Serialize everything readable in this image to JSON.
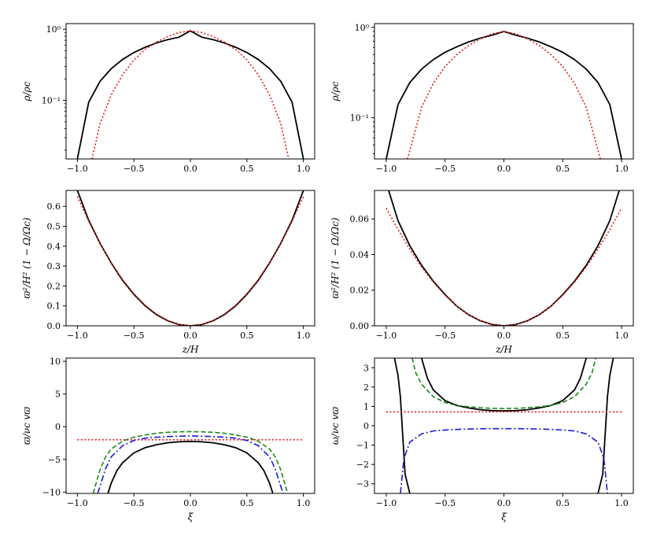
{
  "chart_data": [
    {
      "id": "p1",
      "type": "line",
      "yscale": "log",
      "xlim": [
        -1.1,
        1.1
      ],
      "ylim": [
        0.015,
        1.2
      ],
      "xticks": [
        -1.0,
        -0.5,
        0.0,
        0.5,
        1.0
      ],
      "xtick_labels": [
        "−1.0",
        "−0.5",
        "0.0",
        "0.5",
        "1.0"
      ],
      "yticks": [
        0.1,
        1.0
      ],
      "ytick_labels": [
        "10⁻¹",
        "10⁰"
      ],
      "xlabel": "",
      "ylabel": "ρ/ρc",
      "series": [
        {
          "style": "solid",
          "color": "#000000",
          "x": [
            -1.0,
            -0.9,
            -0.8,
            -0.7,
            -0.6,
            -0.5,
            -0.4,
            -0.3,
            -0.2,
            -0.1,
            0.0,
            0.1,
            0.2,
            0.3,
            0.4,
            0.5,
            0.6,
            0.7,
            0.8,
            0.9,
            1.0
          ],
          "y": [
            0.015,
            0.094,
            0.185,
            0.28,
            0.376,
            0.47,
            0.559,
            0.642,
            0.715,
            0.774,
            0.95,
            0.774,
            0.715,
            0.642,
            0.559,
            0.47,
            0.376,
            0.28,
            0.185,
            0.094,
            0.015
          ]
        },
        {
          "style": "dotted",
          "color": "#e31a1c",
          "x": [
            -0.87,
            -0.8,
            -0.7,
            -0.6,
            -0.5,
            -0.4,
            -0.3,
            -0.2,
            -0.1,
            0.0,
            0.1,
            0.2,
            0.3,
            0.4,
            0.5,
            0.6,
            0.7,
            0.8,
            0.87
          ],
          "y": [
            0.015,
            0.047,
            0.12,
            0.23,
            0.37,
            0.52,
            0.66,
            0.79,
            0.9,
            0.95,
            0.9,
            0.79,
            0.66,
            0.52,
            0.37,
            0.23,
            0.12,
            0.047,
            0.015
          ]
        }
      ]
    },
    {
      "id": "p2",
      "type": "line",
      "yscale": "log",
      "xlim": [
        -1.1,
        1.1
      ],
      "ylim": [
        0.035,
        1.1
      ],
      "xticks": [
        -1.0,
        -0.5,
        0.0,
        0.5,
        1.0
      ],
      "xtick_labels": [
        "−1.0",
        "−0.5",
        "0.0",
        "0.5",
        "1.0"
      ],
      "yticks": [
        0.1,
        1.0
      ],
      "ytick_labels": [
        "10⁻¹",
        "10⁰"
      ],
      "xlabel": "",
      "ylabel": "ρ/ρc",
      "series": [
        {
          "style": "solid",
          "color": "#000000",
          "x": [
            -1.0,
            -0.9,
            -0.8,
            -0.7,
            -0.6,
            -0.5,
            -0.4,
            -0.3,
            -0.2,
            -0.1,
            0.0,
            0.1,
            0.2,
            0.3,
            0.4,
            0.5,
            0.6,
            0.7,
            0.8,
            0.9,
            1.0
          ],
          "y": [
            0.035,
            0.14,
            0.245,
            0.345,
            0.44,
            0.53,
            0.61,
            0.69,
            0.76,
            0.82,
            0.9,
            0.82,
            0.76,
            0.69,
            0.61,
            0.53,
            0.44,
            0.345,
            0.245,
            0.14,
            0.035
          ]
        },
        {
          "style": "dotted",
          "color": "#e31a1c",
          "x": [
            -0.82,
            -0.7,
            -0.6,
            -0.5,
            -0.4,
            -0.3,
            -0.2,
            -0.1,
            0.0,
            0.1,
            0.2,
            0.3,
            0.4,
            0.5,
            0.6,
            0.7,
            0.82
          ],
          "y": [
            0.035,
            0.13,
            0.24,
            0.37,
            0.5,
            0.63,
            0.75,
            0.85,
            0.9,
            0.85,
            0.75,
            0.63,
            0.5,
            0.37,
            0.24,
            0.13,
            0.035
          ]
        }
      ]
    },
    {
      "id": "p3",
      "type": "line",
      "yscale": "linear",
      "xlim": [
        -1.1,
        1.1
      ],
      "ylim": [
        0.0,
        0.68
      ],
      "xticks": [
        -1.0,
        -0.5,
        0.0,
        0.5,
        1.0
      ],
      "xtick_labels": [
        "−1.0",
        "−0.5",
        "0.0",
        "0.5",
        "1.0"
      ],
      "yticks": [
        0.0,
        0.1,
        0.2,
        0.3,
        0.4,
        0.5,
        0.6
      ],
      "ytick_labels": [
        "0.0",
        "0.1",
        "0.2",
        "0.3",
        "0.4",
        "0.5",
        "0.6"
      ],
      "xlabel": "z/H",
      "ylabel": "ϖ²/H² (1 − Ω/Ωc)",
      "series": [
        {
          "style": "solid",
          "color": "#000000",
          "x": [
            -1.0,
            -0.9,
            -0.8,
            -0.7,
            -0.6,
            -0.5,
            -0.4,
            -0.3,
            -0.2,
            -0.1,
            0.0,
            0.1,
            0.2,
            0.3,
            0.4,
            0.5,
            0.6,
            0.7,
            0.8,
            0.9,
            1.0
          ],
          "y": [
            0.68,
            0.53,
            0.415,
            0.315,
            0.228,
            0.158,
            0.1,
            0.056,
            0.025,
            0.006,
            0.0,
            0.006,
            0.025,
            0.056,
            0.1,
            0.158,
            0.228,
            0.315,
            0.415,
            0.53,
            0.68
          ]
        },
        {
          "style": "dotted",
          "color": "#e31a1c",
          "x": [
            -1.0,
            -0.9,
            -0.8,
            -0.7,
            -0.6,
            -0.5,
            -0.4,
            -0.3,
            -0.2,
            -0.1,
            0.0,
            0.1,
            0.2,
            0.3,
            0.4,
            0.5,
            0.6,
            0.7,
            0.8,
            0.9,
            1.0
          ],
          "y": [
            0.65,
            0.525,
            0.415,
            0.317,
            0.232,
            0.161,
            0.103,
            0.058,
            0.026,
            0.0065,
            0.0,
            0.0065,
            0.026,
            0.058,
            0.103,
            0.161,
            0.232,
            0.317,
            0.415,
            0.525,
            0.65
          ]
        }
      ]
    },
    {
      "id": "p4",
      "type": "line",
      "yscale": "linear",
      "xlim": [
        -1.1,
        1.1
      ],
      "ylim": [
        0.0,
        0.076
      ],
      "xticks": [
        -1.0,
        -0.5,
        0.0,
        0.5,
        1.0
      ],
      "xtick_labels": [
        "−1.0",
        "−0.5",
        "0.0",
        "0.5",
        "1.0"
      ],
      "yticks": [
        0.0,
        0.02,
        0.04,
        0.06
      ],
      "ytick_labels": [
        "0.00",
        "0.02",
        "0.04",
        "0.06"
      ],
      "xlabel": "z/H",
      "ylabel": "ϖ²/H² (1 − Ω/Ωc)",
      "series": [
        {
          "style": "solid",
          "color": "#000000",
          "x": [
            -0.98,
            -0.9,
            -0.8,
            -0.7,
            -0.6,
            -0.5,
            -0.4,
            -0.3,
            -0.2,
            -0.1,
            0.0,
            0.1,
            0.2,
            0.3,
            0.4,
            0.5,
            0.6,
            0.7,
            0.8,
            0.9,
            0.98
          ],
          "y": [
            0.076,
            0.059,
            0.045,
            0.034,
            0.025,
            0.0175,
            0.011,
            0.0062,
            0.0028,
            0.0007,
            0.0,
            0.0007,
            0.0028,
            0.0062,
            0.011,
            0.0175,
            0.025,
            0.034,
            0.045,
            0.059,
            0.076
          ]
        },
        {
          "style": "dotted",
          "color": "#e31a1c",
          "x": [
            -1.0,
            -0.9,
            -0.8,
            -0.7,
            -0.6,
            -0.5,
            -0.4,
            -0.3,
            -0.2,
            -0.1,
            0.0,
            0.1,
            0.2,
            0.3,
            0.4,
            0.5,
            0.6,
            0.7,
            0.8,
            0.9,
            1.0
          ],
          "y": [
            0.066,
            0.054,
            0.043,
            0.033,
            0.0245,
            0.0172,
            0.011,
            0.0062,
            0.0028,
            0.0007,
            0.0,
            0.0007,
            0.0028,
            0.0062,
            0.011,
            0.0172,
            0.0245,
            0.033,
            0.043,
            0.054,
            0.066
          ]
        }
      ]
    },
    {
      "id": "p5",
      "type": "line",
      "yscale": "linear",
      "xlim": [
        -1.1,
        1.1
      ],
      "ylim": [
        -10.2,
        10.5
      ],
      "xticks": [
        -1.0,
        -0.5,
        0.0,
        0.5,
        1.0
      ],
      "xtick_labels": [
        "−1.0",
        "−0.5",
        "0.0",
        "0.5",
        "1.0"
      ],
      "yticks": [
        -10,
        -5,
        0,
        5,
        10
      ],
      "ytick_labels": [
        "−10",
        "−5",
        "0",
        "5",
        "10"
      ],
      "xlabel": "ξ",
      "ylabel": "ϖ/νc vϖ",
      "series": [
        {
          "style": "solid",
          "color": "#000000",
          "x": [
            -0.73,
            -0.7,
            -0.65,
            -0.6,
            -0.5,
            -0.4,
            -0.3,
            -0.2,
            -0.1,
            0.0,
            0.1,
            0.2,
            0.3,
            0.4,
            0.5,
            0.6,
            0.65,
            0.7,
            0.73
          ],
          "y": [
            -10.2,
            -8.6,
            -6.7,
            -5.5,
            -4.0,
            -3.2,
            -2.75,
            -2.45,
            -2.3,
            -2.25,
            -2.3,
            -2.45,
            -2.75,
            -3.2,
            -4.0,
            -5.5,
            -6.7,
            -8.6,
            -10.2
          ]
        },
        {
          "style": "dotted",
          "color": "#e31a1c",
          "x": [
            -1.0,
            1.0
          ],
          "y": [
            -2.0,
            -2.0
          ]
        },
        {
          "style": "dashed",
          "color": "#1a8a1a",
          "x": [
            -0.86,
            -0.8,
            -0.75,
            -0.7,
            -0.6,
            -0.5,
            -0.4,
            -0.3,
            -0.2,
            -0.1,
            0.0,
            0.1,
            0.2,
            0.3,
            0.4,
            0.5,
            0.6,
            0.7,
            0.75,
            0.8,
            0.86
          ],
          "y": [
            -10.2,
            -6.6,
            -4.6,
            -3.4,
            -2.2,
            -1.6,
            -1.25,
            -1.0,
            -0.85,
            -0.78,
            -0.75,
            -0.78,
            -0.85,
            -1.0,
            -1.25,
            -1.6,
            -2.2,
            -3.4,
            -4.6,
            -6.6,
            -10.2
          ]
        },
        {
          "style": "dashdot",
          "color": "#1a1ad6",
          "x": [
            -0.82,
            -0.75,
            -0.7,
            -0.6,
            -0.5,
            -0.4,
            -0.3,
            -0.2,
            -0.1,
            0.0,
            0.1,
            0.2,
            0.3,
            0.4,
            0.5,
            0.6,
            0.7,
            0.75,
            0.82
          ],
          "y": [
            -10.2,
            -6.4,
            -4.6,
            -2.9,
            -2.1,
            -1.75,
            -1.6,
            -1.5,
            -1.45,
            -1.4,
            -1.45,
            -1.5,
            -1.6,
            -1.75,
            -2.1,
            -2.9,
            -4.6,
            -6.4,
            -10.2
          ]
        }
      ]
    },
    {
      "id": "p6",
      "type": "line",
      "yscale": "linear",
      "xlim": [
        -1.1,
        1.1
      ],
      "ylim": [
        -3.5,
        3.5
      ],
      "xticks": [
        -1.0,
        -0.5,
        0.0,
        0.5,
        1.0
      ],
      "xtick_labels": [
        "−1.0",
        "−0.5",
        "0.0",
        "0.5",
        "1.0"
      ],
      "yticks": [
        -3,
        -2,
        -1,
        0,
        1,
        2,
        3
      ],
      "ytick_labels": [
        "−3",
        "−2",
        "−1",
        "0",
        "1",
        "2",
        "3"
      ],
      "xlabel": "ξ",
      "ylabel": "ω/νc vϖ",
      "series": [
        {
          "style": "solid",
          "color": "#000000",
          "x": [
            -0.93,
            -0.9,
            -0.88,
            -0.86,
            -0.84,
            -0.8
          ],
          "y": [
            3.5,
            2.6,
            1.5,
            -0.5,
            -2.5,
            -3.5
          ]
        },
        {
          "style": "solid",
          "color": "#000000",
          "x": [
            -0.7,
            -0.65,
            -0.6,
            -0.5,
            -0.4,
            -0.3,
            -0.2,
            -0.1,
            0.0,
            0.1,
            0.2,
            0.3,
            0.4,
            0.5,
            0.6,
            0.65,
            0.7
          ],
          "y": [
            3.5,
            2.45,
            1.85,
            1.3,
            1.05,
            0.92,
            0.83,
            0.78,
            0.77,
            0.78,
            0.83,
            0.92,
            1.05,
            1.3,
            1.85,
            2.45,
            3.5
          ]
        },
        {
          "style": "solid",
          "color": "#000000",
          "x": [
            0.8,
            0.84,
            0.86,
            0.88,
            0.9,
            0.93
          ],
          "y": [
            -3.5,
            -2.5,
            -0.5,
            1.5,
            2.6,
            3.5
          ]
        },
        {
          "style": "dotted",
          "color": "#e31a1c",
          "x": [
            -1.0,
            1.0
          ],
          "y": [
            0.72,
            0.72
          ]
        },
        {
          "style": "dashed",
          "color": "#1a8a1a",
          "x": [
            -0.78,
            -0.75,
            -0.7,
            -0.6,
            -0.5,
            -0.4,
            -0.3,
            -0.2,
            -0.1,
            0.0,
            0.1,
            0.2,
            0.3,
            0.4,
            0.5,
            0.6,
            0.7,
            0.75,
            0.78
          ],
          "y": [
            3.5,
            2.75,
            2.15,
            1.5,
            1.2,
            1.05,
            0.98,
            0.93,
            0.9,
            0.89,
            0.9,
            0.93,
            0.98,
            1.05,
            1.2,
            1.5,
            2.15,
            2.75,
            3.5
          ]
        },
        {
          "style": "dashdot",
          "color": "#1a1ad6",
          "x": [
            -0.88,
            -0.85,
            -0.8,
            -0.7,
            -0.6,
            -0.5,
            -0.4,
            -0.3,
            -0.2,
            -0.1,
            0.0,
            0.1,
            0.2,
            0.3,
            0.4,
            0.5,
            0.6,
            0.7,
            0.8,
            0.85,
            0.88
          ],
          "y": [
            -3.5,
            -1.7,
            -0.85,
            -0.42,
            -0.27,
            -0.22,
            -0.19,
            -0.17,
            -0.155,
            -0.15,
            -0.15,
            -0.15,
            -0.155,
            -0.17,
            -0.19,
            -0.22,
            -0.27,
            -0.42,
            -0.85,
            -1.7,
            -3.5
          ]
        }
      ]
    }
  ]
}
